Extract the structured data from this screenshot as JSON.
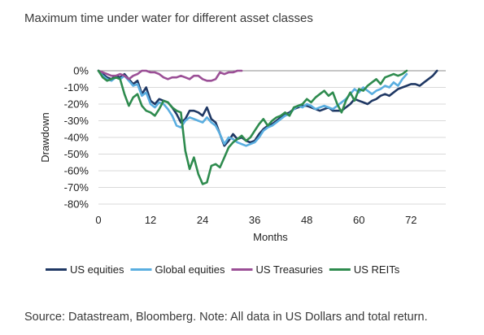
{
  "title": "Maximum time under water for different asset classes",
  "source": "Source: Datastream, Bloomberg. Note: All data in US Dollars and total return.",
  "chart_data": {
    "type": "line",
    "xlabel": "Months",
    "ylabel": "Drawdown",
    "xlim": [
      0,
      80
    ],
    "ylim": [
      -80,
      0
    ],
    "xticks": [
      0,
      12,
      24,
      36,
      48,
      60,
      72
    ],
    "xtick_labels": [
      "0",
      "12",
      "24",
      "36",
      "48",
      "60",
      "72"
    ],
    "yticks": [
      0,
      -10,
      -20,
      -30,
      -40,
      -50,
      -60,
      -70,
      -80
    ],
    "ytick_labels": [
      "0%",
      "-10%",
      "-20%",
      "-30%",
      "-40%",
      "-50%",
      "-60%",
      "-70%",
      "-80%"
    ],
    "grid": true,
    "legend_position": "bottom",
    "series": [
      {
        "name": "US equities",
        "color": "#1f3864",
        "x": [
          0,
          1,
          2,
          3,
          4,
          5,
          6,
          7,
          8,
          9,
          10,
          11,
          12,
          13,
          14,
          15,
          16,
          17,
          18,
          19,
          20,
          21,
          22,
          23,
          24,
          25,
          26,
          27,
          28,
          29,
          30,
          31,
          32,
          33,
          34,
          35,
          36,
          37,
          38,
          39,
          40,
          41,
          42,
          43,
          44,
          45,
          46,
          47,
          48,
          49,
          50,
          51,
          52,
          53,
          54,
          55,
          56,
          57,
          58,
          59,
          60,
          61,
          62,
          63,
          64,
          65,
          66,
          67,
          68,
          69,
          70,
          71,
          72,
          73,
          74,
          75,
          76,
          77,
          78
        ],
        "y": [
          0,
          -2,
          -4,
          -5,
          -3,
          -4,
          -2,
          -5,
          -8,
          -6,
          -14,
          -10,
          -18,
          -20,
          -17,
          -18,
          -19,
          -22,
          -26,
          -31,
          -29,
          -24,
          -24,
          -25,
          -27,
          -22,
          -29,
          -31,
          -38,
          -45,
          -42,
          -38,
          -41,
          -40,
          -42,
          -43,
          -42,
          -38,
          -35,
          -33,
          -32,
          -30,
          -28,
          -26,
          -25,
          -23,
          -22,
          -21,
          -21,
          -22,
          -23,
          -24,
          -23,
          -22,
          -24,
          -24,
          -24,
          -22,
          -20,
          -17,
          -18,
          -19,
          -20,
          -18,
          -17,
          -15,
          -14,
          -15,
          -13,
          -11,
          -10,
          -9,
          -8,
          -8,
          -9,
          -7,
          -5,
          -3,
          0
        ]
      },
      {
        "name": "Global equities",
        "color": "#5aaee0",
        "x": [
          0,
          1,
          2,
          3,
          4,
          5,
          6,
          7,
          8,
          9,
          10,
          11,
          12,
          13,
          14,
          15,
          16,
          17,
          18,
          19,
          20,
          21,
          22,
          23,
          24,
          25,
          26,
          27,
          28,
          29,
          30,
          31,
          32,
          33,
          34,
          35,
          36,
          37,
          38,
          39,
          40,
          41,
          42,
          43,
          44,
          45,
          46,
          47,
          48,
          49,
          50,
          51,
          52,
          53,
          54,
          55,
          56,
          57,
          58,
          59,
          60,
          61,
          62,
          63,
          64,
          65,
          66,
          67,
          68,
          69,
          70,
          71
        ],
        "y": [
          0,
          -3,
          -5,
          -6,
          -4,
          -5,
          -3,
          -6,
          -9,
          -8,
          -15,
          -13,
          -20,
          -22,
          -19,
          -20,
          -23,
          -27,
          -33,
          -34,
          -30,
          -28,
          -29,
          -30,
          -31,
          -28,
          -31,
          -33,
          -38,
          -44,
          -40,
          -41,
          -43,
          -44,
          -45,
          -44,
          -43,
          -40,
          -36,
          -34,
          -33,
          -31,
          -29,
          -27,
          -26,
          -23,
          -21,
          -22,
          -20,
          -21,
          -23,
          -22,
          -21,
          -22,
          -23,
          -21,
          -19,
          -17,
          -14,
          -11,
          -13,
          -10,
          -12,
          -14,
          -12,
          -11,
          -9,
          -10,
          -7,
          -9,
          -5,
          -2
        ]
      },
      {
        "name": "US Treasuries",
        "color": "#9b4f96",
        "x": [
          0,
          1,
          2,
          3,
          4,
          5,
          6,
          7,
          8,
          9,
          10,
          11,
          12,
          13,
          14,
          15,
          16,
          17,
          18,
          19,
          20,
          21,
          22,
          23,
          24,
          25,
          26,
          27,
          28,
          29,
          30,
          31,
          32,
          33
        ],
        "y": [
          0,
          -1,
          -2,
          -3,
          -3,
          -2,
          -3,
          -5,
          -3,
          -2,
          0,
          0,
          -1,
          -1,
          -2,
          -4,
          -5,
          -4,
          -4,
          -3,
          -4,
          -5,
          -3,
          -3,
          -5,
          -6,
          -6,
          -5,
          -1,
          -2,
          -1,
          -1,
          0,
          0
        ]
      },
      {
        "name": "US REITs",
        "color": "#2e8b4e",
        "x": [
          0,
          1,
          2,
          3,
          4,
          5,
          6,
          7,
          8,
          9,
          10,
          11,
          12,
          13,
          14,
          15,
          16,
          17,
          18,
          19,
          20,
          21,
          22,
          23,
          24,
          25,
          26,
          27,
          28,
          29,
          30,
          31,
          32,
          33,
          34,
          35,
          36,
          37,
          38,
          39,
          40,
          41,
          42,
          43,
          44,
          45,
          46,
          47,
          48,
          49,
          50,
          51,
          52,
          53,
          54,
          55,
          56,
          57,
          58,
          59,
          60,
          61,
          62,
          63,
          64,
          65,
          66,
          67,
          68,
          69,
          70,
          71
        ],
        "y": [
          0,
          -4,
          -6,
          -5,
          -4,
          -5,
          -14,
          -21,
          -16,
          -14,
          -21,
          -24,
          -25,
          -27,
          -23,
          -18,
          -19,
          -22,
          -24,
          -25,
          -48,
          -59,
          -52,
          -62,
          -68,
          -67,
          -57,
          -56,
          -58,
          -52,
          -46,
          -43,
          -41,
          -39,
          -42,
          -40,
          -36,
          -32,
          -29,
          -33,
          -30,
          -28,
          -27,
          -25,
          -27,
          -22,
          -21,
          -20,
          -17,
          -19,
          -16,
          -14,
          -12,
          -15,
          -13,
          -20,
          -25,
          -18,
          -13,
          -18,
          -11,
          -12,
          -9,
          -7,
          -5,
          -8,
          -4,
          -3,
          -2,
          -3,
          -2,
          0
        ]
      }
    ]
  }
}
